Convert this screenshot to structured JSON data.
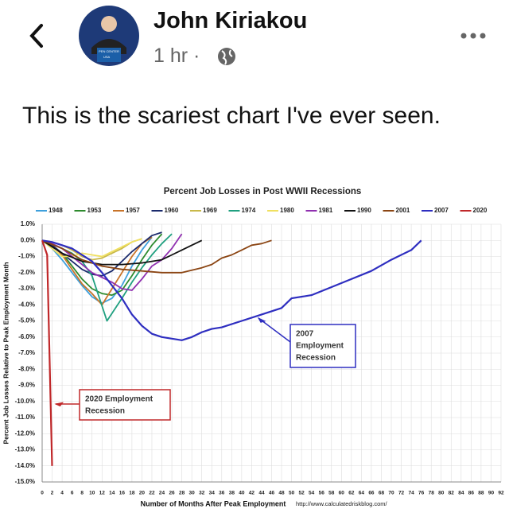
{
  "post": {
    "author": "John Kiriakou",
    "time": "1 hr",
    "separator": "·",
    "avatar_caption": [
      "PEN CENTER",
      "USA"
    ],
    "text": "This is the scariest chart I've ever seen."
  },
  "chart_data": {
    "type": "line",
    "title": "Percent Job Losses in Post WWII Recessions",
    "x_label": "Number of Months After Peak Employment",
    "y_label": "Percent Job Losses Relative to Peak Employment Month",
    "source": "http://www.calculatedriskblog.com/",
    "xlim": [
      0,
      92
    ],
    "xticks": [
      0,
      2,
      4,
      6,
      8,
      10,
      12,
      14,
      16,
      18,
      20,
      22,
      24,
      26,
      28,
      30,
      32,
      34,
      36,
      38,
      40,
      42,
      44,
      46,
      48,
      50,
      52,
      54,
      56,
      58,
      60,
      62,
      64,
      66,
      68,
      70,
      72,
      74,
      76,
      78,
      80,
      82,
      84,
      86,
      88,
      90,
      92
    ],
    "ylim": [
      -15,
      1
    ],
    "yticks": [
      {
        "value": 1,
        "label": "1.0%"
      },
      {
        "value": 0,
        "label": "0.0%"
      },
      {
        "value": -1,
        "label": "-1.0%"
      },
      {
        "value": -2,
        "label": "-2.0%"
      },
      {
        "value": -3,
        "label": "-3.0%"
      },
      {
        "value": -4,
        "label": "-4.0%"
      },
      {
        "value": -5,
        "label": "-5.0%"
      },
      {
        "value": -6,
        "label": "-6.0%"
      },
      {
        "value": -7,
        "label": "-7.0%"
      },
      {
        "value": -8,
        "label": "-8.0%"
      },
      {
        "value": -9,
        "label": "-9.0%"
      },
      {
        "value": -10,
        "label": "-10.0%"
      },
      {
        "value": -11,
        "label": "-11.0%"
      },
      {
        "value": -12,
        "label": "-12.0%"
      },
      {
        "value": -13,
        "label": "-13.0%"
      },
      {
        "value": -14,
        "label": "-14.0%"
      },
      {
        "value": -15,
        "label": "-15.0%"
      }
    ],
    "grid": true,
    "series": [
      {
        "name": "1948",
        "color": "#3fa0dc",
        "x": [
          0,
          2,
          4,
          6,
          8,
          10,
          12,
          14,
          16,
          18,
          20,
          22
        ],
        "values": [
          0,
          -0.5,
          -1.2,
          -2.0,
          -2.8,
          -3.5,
          -3.9,
          -3.6,
          -2.8,
          -1.6,
          -0.6,
          0.2
        ]
      },
      {
        "name": "1953",
        "color": "#2e8b2e",
        "x": [
          0,
          2,
          4,
          6,
          8,
          10,
          12,
          14,
          16,
          18,
          20,
          22,
          24
        ],
        "values": [
          0,
          -0.3,
          -0.8,
          -1.6,
          -2.4,
          -3.0,
          -3.3,
          -3.4,
          -3.1,
          -2.2,
          -1.2,
          -0.3,
          0.4
        ]
      },
      {
        "name": "1957",
        "color": "#c8742a",
        "x": [
          0,
          2,
          4,
          6,
          8,
          10,
          12,
          14,
          16,
          18,
          20,
          22
        ],
        "values": [
          0,
          -0.3,
          -0.9,
          -1.8,
          -2.7,
          -3.3,
          -4.0,
          -3.0,
          -2.0,
          -1.0,
          -0.2,
          0.2
        ]
      },
      {
        "name": "1960",
        "color": "#1a2a6c",
        "x": [
          0,
          2,
          4,
          6,
          8,
          10,
          12,
          14,
          16,
          18,
          20,
          22,
          24
        ],
        "values": [
          0,
          -0.3,
          -0.8,
          -1.3,
          -1.8,
          -2.1,
          -2.2,
          -1.9,
          -1.3,
          -0.7,
          -0.2,
          0.3,
          0.5
        ]
      },
      {
        "name": "1969",
        "color": "#c9b94a",
        "x": [
          0,
          2,
          4,
          6,
          8,
          10,
          12,
          14,
          16,
          18,
          20
        ],
        "values": [
          0,
          -0.1,
          -0.3,
          -0.6,
          -1.0,
          -1.2,
          -1.1,
          -0.8,
          -0.5,
          -0.1,
          0.1
        ]
      },
      {
        "name": "1974",
        "color": "#20a080",
        "x": [
          0,
          2,
          4,
          6,
          8,
          10,
          13,
          16,
          18,
          20,
          22,
          24,
          26
        ],
        "values": [
          0,
          -0.2,
          -0.5,
          -0.8,
          -1.3,
          -2.2,
          -5.0,
          -3.6,
          -2.6,
          -1.7,
          -0.9,
          -0.2,
          0.4
        ]
      },
      {
        "name": "1980",
        "color": "#f0e060",
        "x": [
          0,
          2,
          4,
          6,
          8,
          10,
          12,
          14,
          16,
          18,
          20
        ],
        "values": [
          0,
          -0.5,
          -1.0,
          -1.0,
          -0.8,
          -0.9,
          -1.0,
          -0.7,
          -0.4,
          -0.1,
          0.1
        ]
      },
      {
        "name": "1981",
        "color": "#9030b0",
        "x": [
          0,
          2,
          4,
          6,
          8,
          10,
          12,
          14,
          16,
          18,
          20,
          22,
          24,
          26,
          28
        ],
        "values": [
          0,
          -0.2,
          -0.5,
          -1.0,
          -1.5,
          -2.0,
          -2.3,
          -2.6,
          -3.0,
          -3.1,
          -2.4,
          -1.6,
          -1.2,
          -0.5,
          0.4
        ]
      },
      {
        "name": "1990",
        "color": "#111111",
        "x": [
          0,
          4,
          8,
          12,
          16,
          20,
          24,
          26,
          28,
          30,
          32
        ],
        "values": [
          0,
          -0.8,
          -1.3,
          -1.5,
          -1.5,
          -1.4,
          -1.2,
          -0.9,
          -0.6,
          -0.3,
          0
        ]
      },
      {
        "name": "2001",
        "color": "#8b4513",
        "x": [
          0,
          4,
          8,
          12,
          16,
          20,
          24,
          28,
          32,
          34,
          36,
          38,
          40,
          42,
          44,
          46
        ],
        "values": [
          0,
          -0.5,
          -1.2,
          -1.6,
          -1.8,
          -1.9,
          -2.0,
          -2.0,
          -1.7,
          -1.5,
          -1.1,
          -0.9,
          -0.6,
          -0.3,
          -0.2,
          0
        ]
      },
      {
        "name": "2007",
        "color": "#2e2ec0",
        "x": [
          0,
          2,
          4,
          6,
          8,
          10,
          12,
          14,
          16,
          18,
          20,
          22,
          24,
          26,
          28,
          30,
          32,
          34,
          36,
          40,
          44,
          48,
          50,
          54,
          58,
          62,
          66,
          70,
          74,
          76
        ],
        "values": [
          0,
          -0.1,
          -0.3,
          -0.5,
          -0.9,
          -1.3,
          -2.0,
          -2.8,
          -3.6,
          -4.6,
          -5.3,
          -5.8,
          -6.0,
          -6.1,
          -6.2,
          -6.0,
          -5.7,
          -5.5,
          -5.4,
          -5.0,
          -4.6,
          -4.2,
          -3.6,
          -3.4,
          -2.9,
          -2.4,
          -1.9,
          -1.2,
          -0.6,
          0
        ]
      },
      {
        "name": "2020",
        "color": "#c0282a",
        "x": [
          0,
          1,
          2
        ],
        "values": [
          0,
          -0.9,
          -14.0
        ]
      }
    ],
    "annotations": [
      {
        "lines": [
          "2007",
          "Employment",
          "Recession"
        ],
        "color": "#2e2ec0"
      },
      {
        "lines": [
          "2020 Employment",
          "Recession"
        ],
        "color": "#c0282a"
      }
    ]
  }
}
